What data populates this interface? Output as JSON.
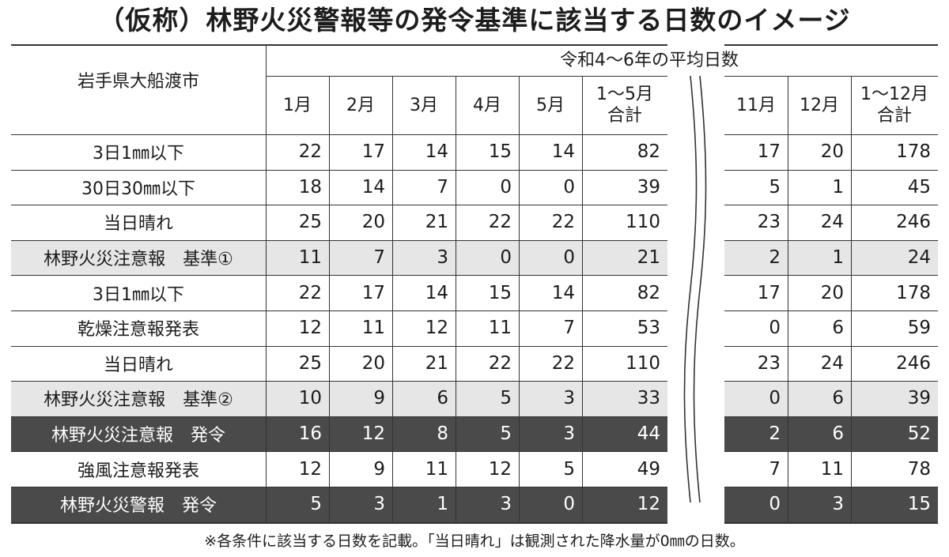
{
  "title": "（仮称）林野火災警報等の発令基準に該当する日数のイメージ",
  "table": {
    "corner_label": "岩手県大船渡市",
    "group_header": "令和4～6年の平均日数",
    "months_left": [
      "1月",
      "2月",
      "3月",
      "4月",
      "5月",
      "1～5月\n合計"
    ],
    "months_right": [
      "11月",
      "12月",
      "1～12月\n合計"
    ],
    "rows": [
      {
        "label": "3日1㎜以下",
        "style": "plain",
        "left": [
          "22",
          "17",
          "14",
          "15",
          "14",
          "82"
        ],
        "right": [
          "17",
          "20",
          "178"
        ]
      },
      {
        "label": "30日30㎜以下",
        "style": "plain",
        "left": [
          "18",
          "14",
          "7",
          "0",
          "0",
          "39"
        ],
        "right": [
          "5",
          "1",
          "45"
        ]
      },
      {
        "label": "当日晴れ",
        "style": "plain",
        "left": [
          "25",
          "20",
          "21",
          "22",
          "22",
          "110"
        ],
        "right": [
          "23",
          "24",
          "246"
        ]
      },
      {
        "label": "林野火災注意報　基準①",
        "style": "light",
        "left": [
          "11",
          "7",
          "3",
          "0",
          "0",
          "21"
        ],
        "right": [
          "2",
          "1",
          "24"
        ]
      },
      {
        "label": "3日1㎜以下",
        "style": "plain",
        "left": [
          "22",
          "17",
          "14",
          "15",
          "14",
          "82"
        ],
        "right": [
          "17",
          "20",
          "178"
        ]
      },
      {
        "label": "乾燥注意報発表",
        "style": "plain",
        "left": [
          "12",
          "11",
          "12",
          "11",
          "7",
          "53"
        ],
        "right": [
          "0",
          "6",
          "59"
        ]
      },
      {
        "label": "当日晴れ",
        "style": "plain",
        "left": [
          "25",
          "20",
          "21",
          "22",
          "22",
          "110"
        ],
        "right": [
          "23",
          "24",
          "246"
        ]
      },
      {
        "label": "林野火災注意報　基準②",
        "style": "light",
        "left": [
          "10",
          "9",
          "6",
          "5",
          "3",
          "33"
        ],
        "right": [
          "0",
          "6",
          "39"
        ]
      },
      {
        "label": "林野火災注意報　発令",
        "style": "dark",
        "left": [
          "16",
          "12",
          "8",
          "5",
          "3",
          "44"
        ],
        "right": [
          "2",
          "6",
          "52"
        ]
      },
      {
        "label": "強風注意報発表",
        "style": "plain",
        "left": [
          "12",
          "9",
          "11",
          "12",
          "5",
          "49"
        ],
        "right": [
          "7",
          "11",
          "78"
        ]
      },
      {
        "label": "林野火災警報　発令",
        "style": "dark",
        "left": [
          "5",
          "3",
          "1",
          "3",
          "0",
          "12"
        ],
        "right": [
          "0",
          "3",
          "15"
        ]
      }
    ]
  },
  "footnote": "※各条件に該当する日数を記載。「当日晴れ」は観測された降水量が0㎜の日数。",
  "colors": {
    "light_row": "#e6e6e6",
    "dark_row": "#4a4a4a",
    "rule": "#333333"
  }
}
